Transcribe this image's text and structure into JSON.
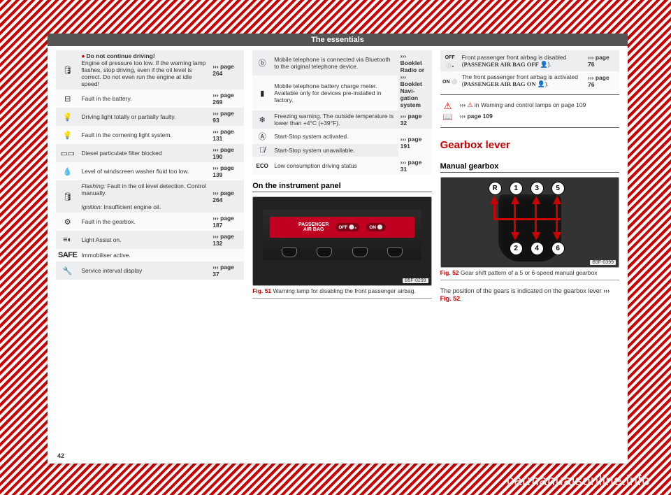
{
  "page_number": "42",
  "header": "The essentials",
  "watermark": "carmanualsonline.info",
  "col1_rows": [
    {
      "icon": "oilcan",
      "desc_html": "<span class='reddot'></span><b>Do not continue driving!</b><br>Engine oil pressure too low. If the warning lamp flashes, stop driving, even if the oil level is correct. Do not even run the engine at idle speed!",
      "ref": "››› page 264"
    },
    {
      "icon": "battery",
      "desc": "Fault in the battery.",
      "ref": "››› page 269"
    },
    {
      "icon": "bulb",
      "desc": "Driving light totally or partially faulty.",
      "ref": "››› page 93"
    },
    {
      "icon": "bulb",
      "desc": "Fault in the cornering light system.",
      "ref": "››› page 131"
    },
    {
      "icon": "dpf",
      "desc": "Diesel particulate filter blocked",
      "ref": "››› page 190"
    },
    {
      "icon": "washer",
      "desc": "Level of windscreen washer fluid too low.",
      "ref": "››› page 139"
    },
    {
      "icon": "oilcan",
      "desc_html": "<i>Flashing:</i> Fault in the oil level detection. Control manually.<br><br><i>Ignition:</i> Insufficient engine oil.",
      "ref": "››› page 264"
    },
    {
      "icon": "gear",
      "desc": "Fault in the gearbox.",
      "ref": "››› page 187"
    },
    {
      "icon": "lightassist",
      "desc": "Light Assist on.",
      "ref": "››› page 132"
    },
    {
      "icon": "safe",
      "desc": "Immobiliser active.",
      "ref": ""
    },
    {
      "icon": "wrench",
      "desc": "Service interval display",
      "ref": "››› page 37"
    }
  ],
  "col2_rows": [
    {
      "icon": "bt",
      "desc": "Mobile telephone is connected via Bluetooth to the original telephone device.",
      "ref": "››› Booklet Radio or ››› Booklet Navi­gation system",
      "rowspan": 2
    },
    {
      "icon": "batt2",
      "desc": "Mobile telephone battery charge meter. Available only for devices pre-installed in factory."
    },
    {
      "icon": "snow",
      "desc": "Freezing warning. The outside temperature is lower than +4°C (+39°F).",
      "ref": "››› page 32"
    },
    {
      "icon": "A",
      "desc": "Start-Stop system activated.",
      "ref": "››› page 191",
      "rowspan": 2
    },
    {
      "icon": "Aoff",
      "desc": "Start-Stop system unavailable."
    },
    {
      "icon": "eco",
      "desc": "Low consumption driving status",
      "ref": "››› page 31"
    }
  ],
  "col3_rows": [
    {
      "icon": "off2",
      "desc_html": "Front passenger front airbag is disabled (<b style='font-family:Arial Black'>PASSENGER AIR BAG OFF <span class='small-sym'>👤</span></b>).",
      "ref": "››› page 76"
    },
    {
      "icon": "on",
      "desc_html": "The front passenger front airbag is activated (<b style='font-family:Arial Black'>PASSENGER AIR BAG ON <span class='small-sym'>👤</span></b>).",
      "ref": "››› page 76"
    }
  ],
  "warnbox": {
    "line1_prefix": "››› ",
    "line1_text": " in Warning and control lamps on page 109",
    "line2": "››› page 109"
  },
  "gearbox_heading": "Gearbox lever",
  "section_panel": "On the instrument panel",
  "section_manual": "Manual gearbox",
  "fig51": {
    "num": "Fig. 51",
    "cap": "Warning lamp for disabling the front passenger airbag.",
    "label": "B5F-0299",
    "slot_text": "PASSENGER\nAIR BAG",
    "badge1": "OFF ⚪₂",
    "badge2": "ON ⚪"
  },
  "fig52": {
    "num": "Fig. 52",
    "cap": "Gear shift pattern of a 5 or 6-speed manual gearbox",
    "label": "B5F-0399"
  },
  "gears": [
    "R",
    "1",
    "3",
    "5",
    "2",
    "4",
    "6"
  ],
  "bodytext": "The position of the gears is indicated on the gearbox lever ",
  "bodytext_ref": "››› Fig. 52",
  "bodytext_suffix": "."
}
